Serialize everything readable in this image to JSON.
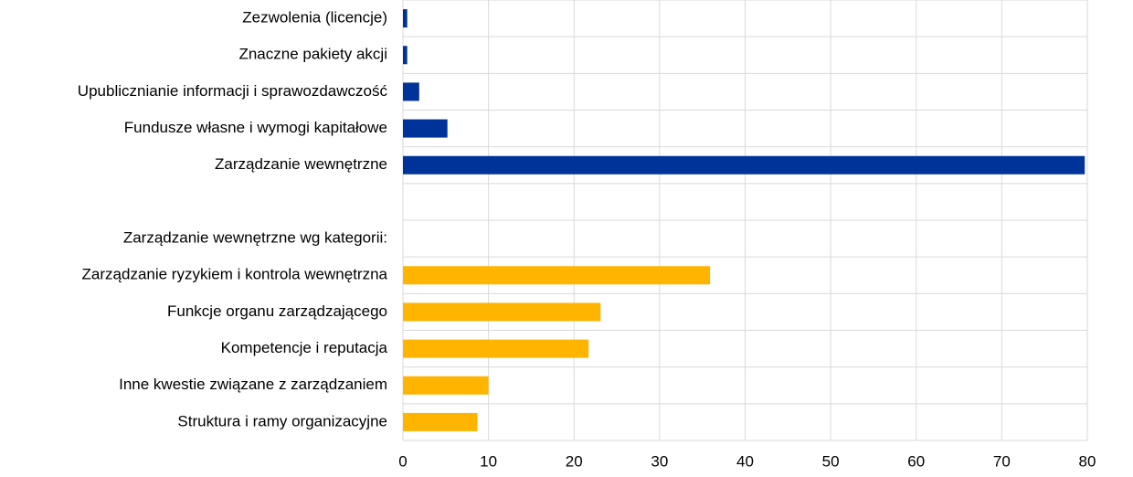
{
  "chart_data": {
    "type": "hbar",
    "categories": [
      "Zezwolenia (licencje)",
      "Znaczne pakiety akcji",
      "Upublicznianie informacji i sprawozdawczość",
      "Fundusze własne i wymogi kapitałowe",
      "Zarządzanie wewnętrzne",
      null,
      "Zarządzanie wewnętrzne wg kategorii:",
      "Zarządzanie ryzykiem i kontrola wewnętrzna",
      "Funkcje organu zarządzającego",
      "Kompetencje i reputacja",
      "Inne kwestie związane z zarządzaniem",
      "Struktura i ramy organizacyjne"
    ],
    "series": [
      {
        "color": "#003399",
        "values": [
          0.5,
          0.5,
          1.9,
          5.2,
          79.7,
          null,
          null,
          null,
          null,
          null,
          null,
          null
        ]
      },
      {
        "color": "#ffb400",
        "values": [
          null,
          null,
          null,
          null,
          null,
          null,
          null,
          35.9,
          23.1,
          21.7,
          10,
          8.7
        ]
      }
    ],
    "xlim": [
      0,
      80
    ],
    "xticks": [
      0,
      10,
      20,
      30,
      40,
      50,
      60,
      70,
      80
    ],
    "grid": true
  }
}
